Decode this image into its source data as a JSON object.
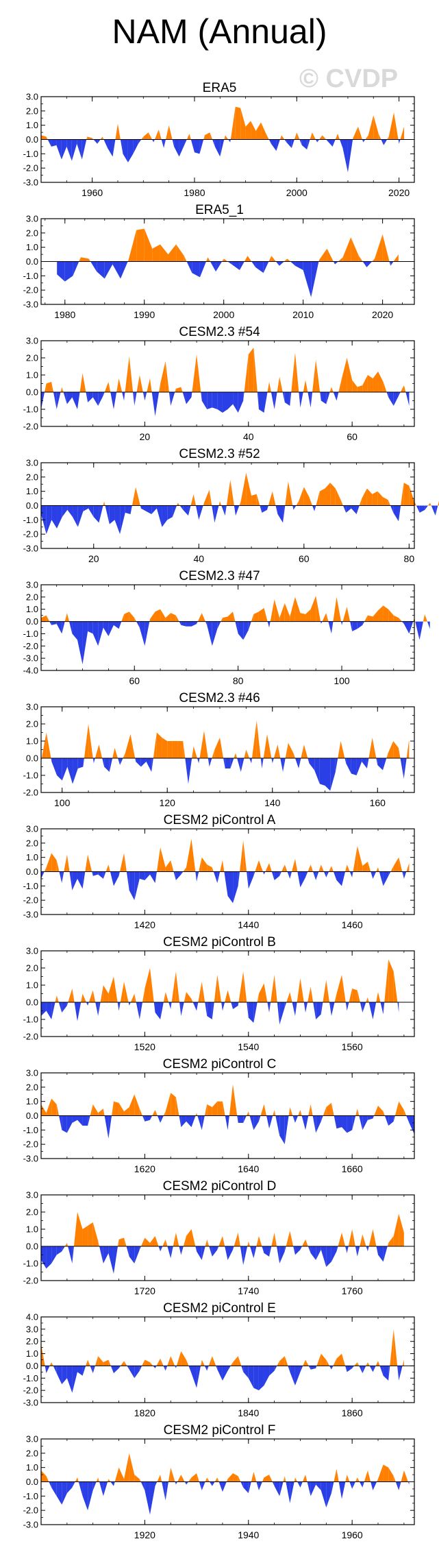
{
  "figure": {
    "title": "NAM (Annual)",
    "watermark": "© CVDP",
    "colors": {
      "positive": "#ff8000",
      "negative": "#2b3fe6"
    }
  },
  "chart_data": [
    {
      "type": "area",
      "title": "ERA5",
      "x_start": 1950,
      "xlim": [
        1950,
        2023
      ],
      "xticks": [
        1960,
        1980,
        2000,
        2020
      ],
      "ylim": [
        -3,
        3
      ],
      "yticks": [
        3,
        2,
        1,
        0,
        -1,
        -2,
        -3
      ],
      "values": [
        0.3,
        0.2,
        -0.5,
        -0.4,
        -1.4,
        -0.5,
        -1.5,
        -0.3,
        -1.4,
        0.2,
        0.1,
        -0.3,
        0.2,
        -0.6,
        -1.2,
        1.1,
        -1.0,
        -1.6,
        -1.0,
        -0.3,
        0.2,
        0.5,
        -0.2,
        0.7,
        -0.6,
        1.0,
        -0.5,
        -1.2,
        -0.4,
        0.4,
        -0.9,
        -1.0,
        0.3,
        0.5,
        -0.5,
        -1.2,
        0.3,
        -0.2,
        2.3,
        2.2,
        0.9,
        1.3,
        0.6,
        1.2,
        0.4,
        -0.3,
        -0.8,
        0.3,
        -0.2,
        -0.6,
        0.5,
        -0.4,
        -0.7,
        0.5,
        -0.2,
        0.3,
        -0.1,
        -0.5,
        0.4,
        -0.6,
        -2.3,
        0.1,
        0.9,
        -0.2,
        0.3,
        1.7,
        0.4,
        -0.4,
        0.2,
        1.9,
        -0.3,
        0.9
      ]
    },
    {
      "type": "area",
      "title": "ERA5_1",
      "x_start": 1979,
      "xlim": [
        1977,
        2024
      ],
      "xticks": [
        1980,
        1990,
        2000,
        2010,
        2020
      ],
      "ylim": [
        -3,
        3
      ],
      "yticks": [
        3,
        2,
        1,
        0,
        -1,
        -2,
        -3
      ],
      "values": [
        -0.9,
        -1.4,
        -1.0,
        0.3,
        0.2,
        -0.7,
        -1.2,
        -0.2,
        -1.2,
        0.1,
        2.2,
        2.3,
        0.9,
        1.2,
        0.5,
        1.2,
        0.4,
        -0.8,
        -1.1,
        0.3,
        -0.7,
        0.2,
        -0.2,
        -0.6,
        0.4,
        -0.4,
        -0.8,
        0.4,
        -0.3,
        0.2,
        -0.3,
        -0.6,
        -2.5,
        0.1,
        0.9,
        -0.2,
        0.3,
        1.7,
        0.4,
        -0.4,
        0.2,
        1.9,
        -0.3,
        0.5
      ]
    },
    {
      "type": "area",
      "title": "CESM2.3 #54",
      "x_start": 0,
      "xlim": [
        0,
        72
      ],
      "xticks": [
        20.0,
        40.0,
        60.0
      ],
      "ylim": [
        -2,
        3
      ],
      "yticks": [
        3,
        2,
        1,
        0,
        -1,
        -2
      ],
      "values": [
        -1.0,
        0.5,
        0.6,
        -1.0,
        0.3,
        -0.7,
        -0.3,
        -1.0,
        1.1,
        -0.6,
        -0.3,
        -0.8,
        -0.2,
        0.6,
        -1.0,
        0.8,
        -0.5,
        2.1,
        -0.8,
        1.0,
        -0.5,
        0.8,
        -1.4,
        0.5,
        1.8,
        -0.8,
        0.2,
        0.3,
        -0.7,
        -0.3,
        2.2,
        -0.5,
        -1.0,
        -0.9,
        -1.0,
        -1.2,
        -1.0,
        -0.7,
        -1.2,
        -0.5,
        2.2,
        2.6,
        -1.0,
        -1.2,
        0.6,
        -1.0,
        0.9,
        -0.6,
        -0.8,
        2.3,
        -0.9,
        0.7,
        -0.9,
        1.9,
        -0.5,
        -0.7,
        0.3,
        -0.5,
        0.8,
        2.0,
        0.7,
        0.3,
        0.4,
        1.0,
        0.8,
        1.2,
        0.6,
        -0.3,
        -0.8,
        -0.2,
        0.4,
        -0.8
      ]
    },
    {
      "type": "area",
      "title": "CESM2.3 #52",
      "x_start": 10,
      "xlim": [
        10,
        81
      ],
      "xticks": [
        20,
        40,
        60,
        80
      ],
      "ylim": [
        -3,
        3
      ],
      "yticks": [
        3,
        2,
        1,
        0,
        -1,
        -2,
        -3
      ],
      "values": [
        -0.6,
        -2.0,
        -1.0,
        -1.6,
        -0.8,
        -0.3,
        -0.8,
        -1.5,
        -0.4,
        -0.2,
        -0.8,
        -1.2,
        0.3,
        -1.3,
        -1.0,
        -2.0,
        -0.5,
        -0.6,
        1.3,
        -0.2,
        -0.4,
        -0.6,
        -0.2,
        -1.5,
        -1.0,
        -0.8,
        0.2,
        -0.3,
        -0.7,
        0.8,
        -1.0,
        0.2,
        1.1,
        -1.2,
        0.3,
        -0.7,
        1.8,
        -0.7,
        0.3,
        2.3,
        0.7,
        0.8,
        -0.5,
        -0.3,
        1.0,
        -0.6,
        -1.2,
        1.7,
        -0.3,
        0.3,
        1.3,
        0.6,
        -0.4,
        1.0,
        1.2,
        1.6,
        1.2,
        0.4,
        -0.5,
        -0.2,
        -0.6,
        0.5,
        1.2,
        0.8,
        1.0,
        0.6,
        0.4,
        -0.5,
        -1.1,
        1.6,
        1.4,
        0.3,
        -0.5,
        -0.3,
        0.2,
        -0.7,
        0.8,
        -1.5,
        -0.6,
        -0.2
      ]
    },
    {
      "type": "area",
      "title": "CESM2.3 #47",
      "x_start": 42,
      "xlim": [
        42,
        114
      ],
      "xticks": [
        60,
        80,
        100
      ],
      "ylim": [
        -4,
        3
      ],
      "yticks": [
        3,
        2,
        1,
        0,
        -1,
        -2,
        -3,
        -4
      ],
      "values": [
        0.3,
        0.5,
        -0.3,
        -0.2,
        -1.0,
        0.7,
        -1.0,
        -1.5,
        -3.5,
        -0.8,
        -1.0,
        -2.0,
        -0.5,
        -1.2,
        -0.3,
        -0.6,
        0.6,
        0.8,
        0.3,
        -0.5,
        -2.0,
        0.2,
        0.8,
        1.0,
        0.3,
        0.7,
        0.5,
        -0.3,
        -0.4,
        -0.4,
        -0.2,
        0.7,
        -0.3,
        -2.0,
        -0.6,
        0.3,
        0.4,
        0.8,
        -1.0,
        -1.5,
        -0.7,
        0.6,
        0.8,
        1.1,
        -0.5,
        1.8,
        0.3,
        1.5,
        0.4,
        2.0,
        0.7,
        0.6,
        1.0,
        2.1,
        -0.2,
        0.7,
        -1.0,
        2.0,
        -0.3,
        1.2,
        -0.8,
        -0.6,
        -0.3,
        0.5,
        0.4,
        0.9,
        1.3,
        1.0,
        0.5,
        0.3,
        -0.2,
        -1.0,
        0.3,
        -1.5,
        0.6,
        -0.6
      ]
    },
    {
      "type": "area",
      "title": "CESM2.3 #46",
      "x_start": 96,
      "xlim": [
        96,
        167
      ],
      "xticks": [
        100,
        120,
        140,
        160
      ],
      "ylim": [
        -2,
        3
      ],
      "yticks": [
        3,
        2,
        1,
        0,
        -1,
        -2
      ],
      "values": [
        -0.2,
        1.5,
        -0.2,
        -1.0,
        -1.3,
        -0.5,
        -1.5,
        -0.6,
        -0.5,
        2.0,
        -0.3,
        0.8,
        -0.5,
        -0.8,
        0.6,
        -0.4,
        0.3,
        1.4,
        -0.2,
        -0.5,
        -0.2,
        -0.8,
        1.5,
        1.2,
        1.0,
        1.0,
        1.0,
        1.0,
        -1.5,
        0.7,
        -0.3,
        1.6,
        -0.5,
        0.5,
        1.2,
        -0.6,
        -0.6,
        0.3,
        -0.8,
        0.5,
        -0.3,
        2.2,
        -0.6,
        1.4,
        -0.3,
        0.8,
        -0.8,
        0.9,
        0.3,
        -0.6,
        0.8,
        -0.3,
        -0.7,
        -1.5,
        -1.6,
        -1.9,
        -0.8,
        1.0,
        -0.3,
        -0.9,
        -1.0,
        -0.2,
        -0.6,
        1.2,
        -0.4,
        -0.7,
        0.3,
        1.0,
        0.6,
        -1.2,
        1.1
      ]
    },
    {
      "type": "area",
      "title": "CESM2 piControl A",
      "x_start": 1400,
      "xlim": [
        1400,
        1472
      ],
      "xticks": [
        1420,
        1440,
        1460
      ],
      "ylim": [
        -3,
        3
      ],
      "yticks": [
        3,
        2,
        1,
        0,
        -1,
        -2,
        -3
      ],
      "values": [
        -0.5,
        0.3,
        1.3,
        0.8,
        -0.8,
        1.2,
        -1.3,
        -0.5,
        -1.2,
        1.2,
        -0.3,
        -0.2,
        -0.5,
        0.5,
        -1.0,
        -0.3,
        1.3,
        -1.3,
        -2.0,
        -0.5,
        -0.6,
        -0.2,
        -0.8,
        1.7,
        0.3,
        0.8,
        -0.6,
        -0.2,
        0.3,
        2.3,
        -0.7,
        1.0,
        0.5,
        0.3,
        -0.8,
        0.8,
        -1.7,
        -2.2,
        -1.0,
        2.2,
        -1.2,
        -0.3,
        0.8,
        -0.2,
        0.6,
        -0.6,
        -0.3,
        0.5,
        -0.5,
        0.9,
        -1.1,
        -0.4,
        0.5,
        -0.6,
        0.5,
        -0.4,
        0.4,
        -0.6,
        -1.0,
        0.5,
        -0.4,
        1.8,
        0.4,
        0.7,
        -0.5,
        0.3,
        -1.0,
        -0.3,
        0.4,
        1.0,
        -0.5,
        0.6
      ]
    },
    {
      "type": "area",
      "title": "CESM2 piControl B",
      "x_start": 1500,
      "xlim": [
        1500,
        1572
      ],
      "xticks": [
        1520,
        1540,
        1560
      ],
      "ylim": [
        -2,
        3
      ],
      "yticks": [
        3,
        2,
        1,
        0,
        -1,
        -2
      ],
      "values": [
        -0.8,
        -0.5,
        -1.0,
        0.4,
        -0.6,
        -0.2,
        0.8,
        -1.1,
        0.5,
        -0.2,
        0.7,
        -0.8,
        1.0,
        0.5,
        1.5,
        -0.5,
        1.2,
        -0.2,
        0.5,
        -1.0,
        0.8,
        2.0,
        -0.6,
        -1.0,
        0.6,
        -0.4,
        1.8,
        -0.8,
        0.6,
        0.2,
        -0.5,
        1.2,
        -0.8,
        -1.0,
        1.6,
        -0.5,
        0.7,
        -0.4,
        -0.2,
        1.8,
        -0.9,
        -1.2,
        0.5,
        1.1,
        -0.6,
        1.6,
        -1.3,
        -0.3,
        0.6,
        -0.8,
        1.4,
        -0.6,
        0.9,
        -1.0,
        -0.7,
        1.3,
        -0.8,
        0.5,
        1.6,
        -0.5,
        0.8,
        0.7,
        -0.6,
        0.3,
        -1.0,
        0.6,
        -0.7,
        2.5,
        1.8,
        -0.6
      ]
    },
    {
      "type": "area",
      "title": "CESM2 piControl C",
      "x_start": 1600,
      "xlim": [
        1600,
        1672
      ],
      "xticks": [
        1620,
        1640,
        1660
      ],
      "ylim": [
        -3,
        3
      ],
      "yticks": [
        3,
        2,
        1,
        0,
        -1,
        -2,
        -3
      ],
      "values": [
        0.8,
        0.2,
        1.2,
        0.8,
        -1.0,
        -1.2,
        -0.5,
        -0.3,
        -0.7,
        -0.7,
        0.8,
        0.2,
        0.5,
        -1.6,
        1.0,
        0.9,
        0.3,
        0.6,
        1.5,
        0.5,
        -0.4,
        -0.3,
        0.4,
        -0.5,
        0.3,
        1.6,
        1.3,
        -0.8,
        -0.4,
        -0.8,
        0.2,
        -1.0,
        0.8,
        0.6,
        1.0,
        1.0,
        -1.0,
        2.2,
        -0.5,
        -0.5,
        0.3,
        -1.0,
        -0.4,
        0.8,
        -0.9,
        0.4,
        -1.4,
        -2.0,
        0.6,
        -0.5,
        0.4,
        -1.0,
        0.8,
        -1.2,
        -0.4,
        0.6,
        0.9,
        -0.9,
        -0.8,
        -1.2,
        -1.0,
        0.5,
        -1.0,
        -0.3,
        -0.2,
        0.7,
        0.3,
        -0.7,
        -0.4,
        1.0,
        0.4,
        -0.5,
        -1.3
      ]
    },
    {
      "type": "area",
      "title": "CESM2 piControl D",
      "x_start": 1700,
      "xlim": [
        1700,
        1772
      ],
      "xticks": [
        1720,
        1740,
        1760
      ],
      "ylim": [
        -2,
        3
      ],
      "yticks": [
        3,
        2,
        1,
        0,
        -1,
        -2
      ],
      "values": [
        -0.8,
        -1.3,
        -1.0,
        -0.5,
        -0.3,
        0.2,
        -1.0,
        2.0,
        1.0,
        1.2,
        1.4,
        0.3,
        -1.0,
        -0.4,
        -1.6,
        0.4,
        0.5,
        -0.6,
        -1.0,
        -0.2,
        0.5,
        0.2,
        0.6,
        -0.3,
        0.4,
        -0.7,
        0.8,
        -0.5,
        0.6,
        1.0,
        -0.3,
        -0.8,
        0.4,
        -0.6,
        -0.2,
        0.6,
        -0.8,
        -0.2,
        0.8,
        -1.1,
        0.3,
        -0.7,
        0.6,
        -0.4,
        -0.6,
        0.8,
        -1.0,
        -0.3,
        0.9,
        -0.5,
        -0.2,
        0.4,
        -0.4,
        -0.8,
        -0.2,
        -1.2,
        -0.9,
        -0.3,
        0.8,
        -0.4,
        1.0,
        -0.6,
        0.7,
        -0.3,
        1.0,
        -0.5,
        -0.9,
        0.2,
        0.6,
        1.9,
        0.8
      ]
    },
    {
      "type": "area",
      "title": "CESM2 piControl E",
      "x_start": 1800,
      "xlim": [
        1800,
        1872
      ],
      "xticks": [
        1820,
        1840,
        1860
      ],
      "ylim": [
        -3,
        4
      ],
      "yticks": [
        4,
        3,
        2,
        1,
        0,
        -1,
        -2,
        -3
      ],
      "values": [
        1.8,
        -0.6,
        0.3,
        -0.6,
        -1.5,
        -1.0,
        -2.2,
        -0.5,
        -0.8,
        0.5,
        -0.6,
        0.8,
        0.3,
        0.5,
        -0.6,
        -0.2,
        0.4,
        -0.3,
        -1.0,
        -0.4,
        0.5,
        0.3,
        -0.2,
        0.6,
        -0.4,
        0.8,
        -0.2,
        1.2,
        0.5,
        -0.6,
        -1.8,
        0.5,
        -0.4,
        0.8,
        -0.3,
        -1.2,
        -0.4,
        0.3,
        0.8,
        -0.5,
        -1.0,
        -1.8,
        -2.0,
        -1.6,
        -0.8,
        -0.4,
        0.4,
        0.8,
        -0.5,
        -1.6,
        -0.5,
        0.5,
        -0.3,
        -0.2,
        1.0,
        0.5,
        -0.3,
        0.6,
        1.0,
        -0.5,
        -0.2,
        0.3,
        -0.6,
        0.3,
        -0.5,
        0.4,
        -0.8,
        -1.2,
        3.0,
        -1.2,
        0.5
      ]
    },
    {
      "type": "area",
      "title": "CESM2 piControl F",
      "x_start": 1900,
      "xlim": [
        1900,
        1972
      ],
      "xticks": [
        1920,
        1940,
        1960
      ],
      "ylim": [
        -3,
        3
      ],
      "yticks": [
        3,
        2,
        1,
        0,
        -1,
        -2,
        -3
      ],
      "values": [
        0.8,
        0.4,
        -0.4,
        -1.0,
        -1.6,
        -0.8,
        -0.4,
        0.3,
        -1.0,
        -2.0,
        -0.6,
        0.3,
        -1.0,
        0.2,
        -0.3,
        1.0,
        0.2,
        2.0,
        0.5,
        0.2,
        -0.6,
        -2.3,
        -0.3,
        0.5,
        -1.3,
        1.0,
        -0.2,
        0.5,
        -0.2,
        0.3,
        0.6,
        -0.6,
        0.3,
        -0.3,
        0.3,
        -0.7,
        0.2,
        0.6,
        0.4,
        -0.4,
        -0.8,
        0.7,
        -0.6,
        0.3,
        0.5,
        -0.3,
        -1.0,
        0.4,
        -1.5,
        0.3,
        -0.4,
        0.5,
        -1.0,
        -0.2,
        -0.6,
        -1.8,
        -0.8,
        0.9,
        -1.2,
        0.5,
        -0.5,
        0.3,
        -0.4,
        0.8,
        -0.6,
        0.2,
        1.2,
        1.0,
        0.4,
        -0.6,
        0.8,
        -0.2
      ]
    }
  ]
}
